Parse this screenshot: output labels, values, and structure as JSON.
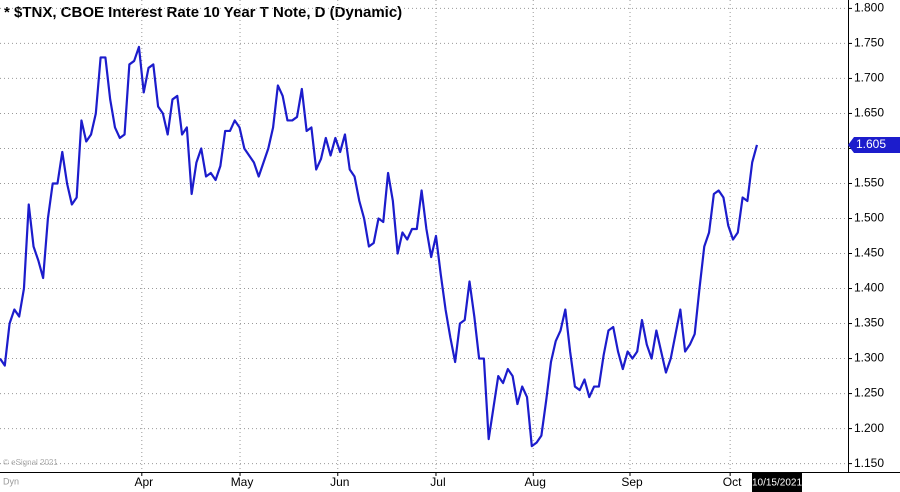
{
  "chart_data": {
    "type": "line",
    "title": "* $TNX, CBOE Interest Rate 10 Year T Note, D (Dynamic)",
    "date_label": "10/15/2021",
    "footer_left": "Dyn",
    "watermark": "© eSignal 2021",
    "series": [
      {
        "name": "$TNX",
        "color": "#1c1ccc",
        "values": [
          1.3,
          1.29,
          1.35,
          1.37,
          1.36,
          1.4,
          1.52,
          1.46,
          1.44,
          1.415,
          1.5,
          1.55,
          1.55,
          1.595,
          1.55,
          1.52,
          1.53,
          1.64,
          1.61,
          1.62,
          1.65,
          1.73,
          1.73,
          1.67,
          1.63,
          1.615,
          1.62,
          1.72,
          1.725,
          1.745,
          1.68,
          1.715,
          1.72,
          1.66,
          1.65,
          1.62,
          1.67,
          1.675,
          1.62,
          1.63,
          1.535,
          1.58,
          1.6,
          1.56,
          1.565,
          1.555,
          1.575,
          1.625,
          1.625,
          1.64,
          1.63,
          1.6,
          1.59,
          1.58,
          1.56,
          1.58,
          1.6,
          1.63,
          1.69,
          1.675,
          1.64,
          1.64,
          1.645,
          1.685,
          1.625,
          1.63,
          1.57,
          1.585,
          1.615,
          1.59,
          1.615,
          1.595,
          1.62,
          1.57,
          1.56,
          1.525,
          1.5,
          1.46,
          1.465,
          1.5,
          1.495,
          1.565,
          1.525,
          1.45,
          1.48,
          1.47,
          1.485,
          1.485,
          1.54,
          1.485,
          1.445,
          1.475,
          1.42,
          1.37,
          1.33,
          1.295,
          1.35,
          1.355,
          1.41,
          1.36,
          1.3,
          1.3,
          1.185,
          1.23,
          1.275,
          1.265,
          1.285,
          1.275,
          1.235,
          1.26,
          1.245,
          1.175,
          1.18,
          1.19,
          1.24,
          1.295,
          1.325,
          1.34,
          1.37,
          1.31,
          1.26,
          1.255,
          1.27,
          1.245,
          1.26,
          1.26,
          1.305,
          1.34,
          1.345,
          1.31,
          1.285,
          1.31,
          1.3,
          1.31,
          1.355,
          1.32,
          1.3,
          1.34,
          1.31,
          1.28,
          1.3,
          1.335,
          1.37,
          1.31,
          1.32,
          1.335,
          1.4,
          1.46,
          1.48,
          1.535,
          1.54,
          1.53,
          1.49,
          1.47,
          1.48,
          1.53,
          1.525,
          1.58,
          1.605
        ]
      }
    ],
    "xlim": [
      0,
      177
    ],
    "xticks": [
      {
        "value": 29.6,
        "label": "Apr"
      },
      {
        "value": 50.1,
        "label": "May"
      },
      {
        "value": 70.5,
        "label": "Jun"
      },
      {
        "value": 91,
        "label": "Jul"
      },
      {
        "value": 111.3,
        "label": "Aug"
      },
      {
        "value": 131.5,
        "label": "Sep"
      },
      {
        "value": 152.4,
        "label": "Oct"
      }
    ],
    "ylim": [
      1.138,
      1.812
    ],
    "yticks": [
      {
        "value": 1.15,
        "label": "1.150"
      },
      {
        "value": 1.2,
        "label": "1.200"
      },
      {
        "value": 1.25,
        "label": "1.250"
      },
      {
        "value": 1.3,
        "label": "1.300"
      },
      {
        "value": 1.35,
        "label": "1.350"
      },
      {
        "value": 1.4,
        "label": "1.400"
      },
      {
        "value": 1.45,
        "label": "1.450"
      },
      {
        "value": 1.5,
        "label": "1.500"
      },
      {
        "value": 1.55,
        "label": "1.550"
      },
      {
        "value": 1.6,
        "label": "1.600"
      },
      {
        "value": 1.65,
        "label": "1.650"
      },
      {
        "value": 1.7,
        "label": "1.700"
      },
      {
        "value": 1.75,
        "label": "1.750"
      },
      {
        "value": 1.8,
        "label": "1.800"
      }
    ],
    "grid": true
  }
}
